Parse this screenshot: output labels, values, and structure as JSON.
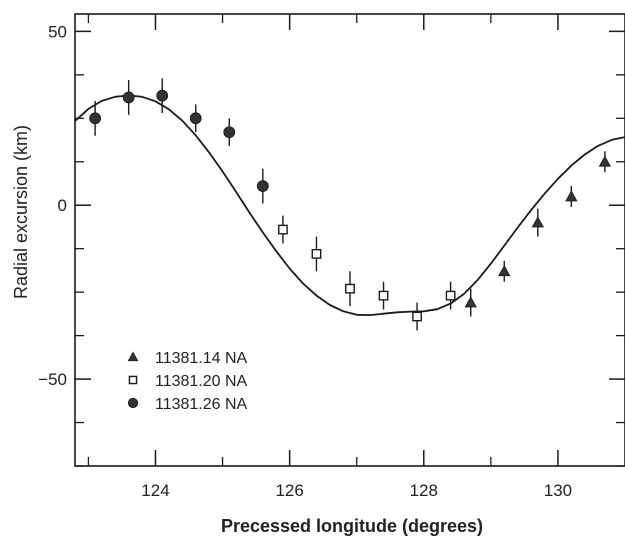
{
  "chart_data": {
    "type": "scatter",
    "xlabel": "Precessed longitude (degrees)",
    "ylabel": "Radial excursion (km)",
    "xlim": [
      122.8,
      131.0
    ],
    "ylim": [
      -75,
      55
    ],
    "x_major_ticks": [
      124,
      126,
      128,
      130
    ],
    "x_major_tick_labels": [
      "124",
      "126",
      "128",
      "130"
    ],
    "x_minor_ticks": [
      123,
      125,
      127,
      129
    ],
    "y_major_ticks": [
      -50,
      0,
      50
    ],
    "y_major_tick_labels": [
      "−50",
      "0",
      "50"
    ],
    "y_minor_ticks": [
      -75,
      -62.5,
      -37.5,
      -25,
      -12.5,
      12.5,
      25,
      37.5
    ],
    "grid": false,
    "legend_position": "bottom-left",
    "fit_curve": {
      "type": "sinusoid",
      "x": [
        122.8,
        123.0,
        123.2,
        123.4,
        123.6,
        123.8,
        124.0,
        124.2,
        124.4,
        124.6,
        124.8,
        125.0,
        125.2,
        125.4,
        125.6,
        125.8,
        126.0,
        126.2,
        126.4,
        126.6,
        126.8,
        127.0,
        127.2,
        127.4,
        127.6,
        127.8,
        128.0,
        128.2,
        128.4,
        128.6,
        128.8,
        129.0,
        129.2,
        129.4,
        129.6,
        129.8,
        130.0,
        130.2,
        130.4,
        130.6,
        130.8,
        131.0
      ],
      "y": [
        24.2,
        27.7,
        30.0,
        31.2,
        31.6,
        31.2,
        29.9,
        27.6,
        24.3,
        20.1,
        15.2,
        9.7,
        3.9,
        -2.1,
        -7.8,
        -13.2,
        -18.2,
        -22.5,
        -26.0,
        -28.7,
        -30.5,
        -31.5,
        -31.6,
        -31.2,
        -30.8,
        -30.6,
        -30.5,
        -29.9,
        -28.3,
        -25.5,
        -21.6,
        -16.8,
        -11.6,
        -6.4,
        -1.4,
        3.3,
        7.6,
        11.4,
        14.6,
        17.1,
        18.8,
        19.6
      ]
    },
    "series": [
      {
        "name": "11381.14 NA",
        "marker": "triangle",
        "x": [
          128.7,
          129.2,
          129.7,
          130.2,
          130.7
        ],
        "y": [
          -28,
          -19,
          -5,
          2.5,
          12.5
        ],
        "err": [
          4,
          3,
          4,
          3,
          3
        ]
      },
      {
        "name": "11381.20 NA",
        "marker": "open-square",
        "x": [
          125.9,
          126.4,
          126.9,
          127.4,
          127.9,
          128.4
        ],
        "y": [
          -7,
          -14,
          -24,
          -26,
          -32,
          -26
        ],
        "err": [
          4,
          5,
          5,
          4,
          4,
          4
        ]
      },
      {
        "name": "11381.26 NA",
        "marker": "filled-circle",
        "x": [
          123.1,
          123.6,
          124.1,
          124.6,
          125.1,
          125.6
        ],
        "y": [
          25,
          31,
          31.5,
          25,
          21,
          5.5
        ],
        "err": [
          5,
          5,
          5,
          4,
          4,
          5
        ]
      }
    ],
    "colors": {
      "ink": "#1a1a1a",
      "marker_fill": "#333333",
      "background": "#ffffff"
    }
  }
}
